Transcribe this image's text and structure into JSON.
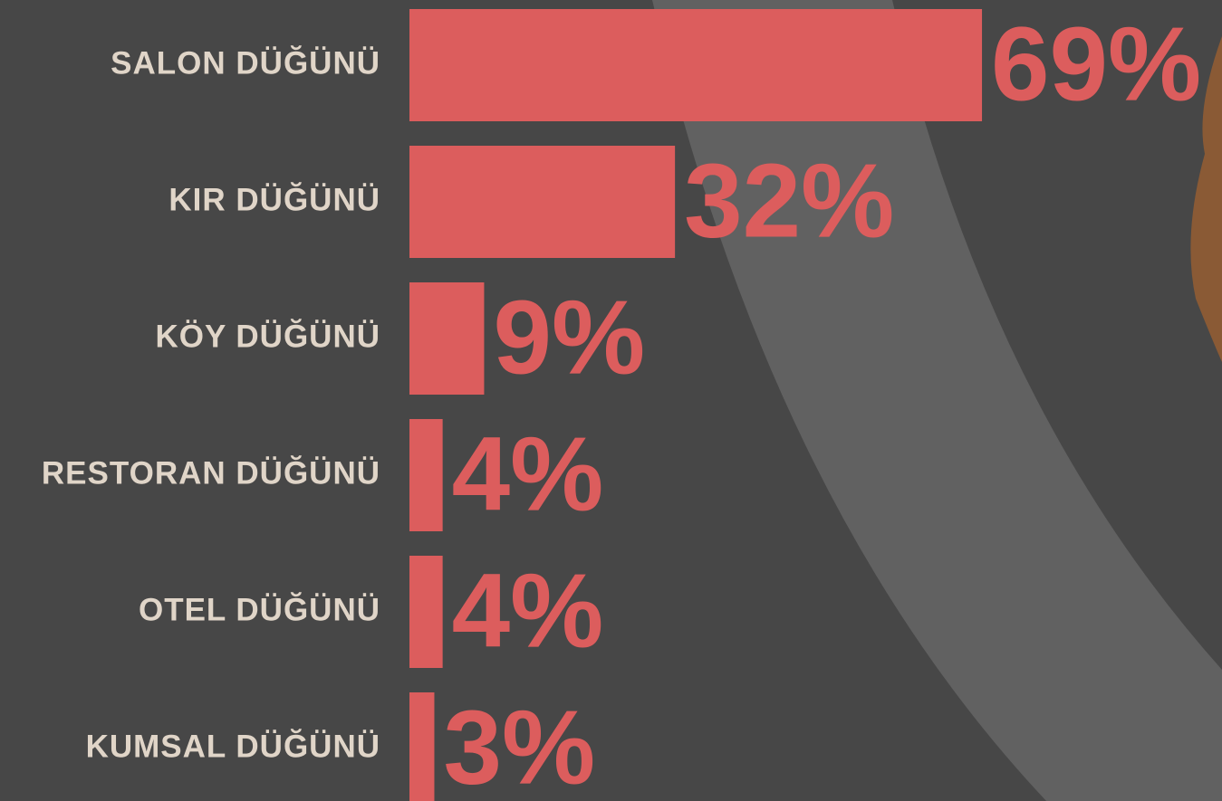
{
  "chart_data": {
    "type": "bar",
    "orientation": "horizontal",
    "categories": [
      "SALON DÜĞÜNÜ",
      "KIR DÜĞÜNÜ",
      "KÖY DÜĞÜNÜ",
      "RESTORAN DÜĞÜNÜ",
      "OTEL DÜĞÜNÜ",
      "KUMSAL DÜĞÜNÜ"
    ],
    "values": [
      69,
      32,
      9,
      4,
      4,
      3
    ],
    "value_labels": [
      "69%",
      "32%",
      "9%",
      "4%",
      "4%",
      "3%"
    ],
    "color": "#dc5d5d"
  }
}
